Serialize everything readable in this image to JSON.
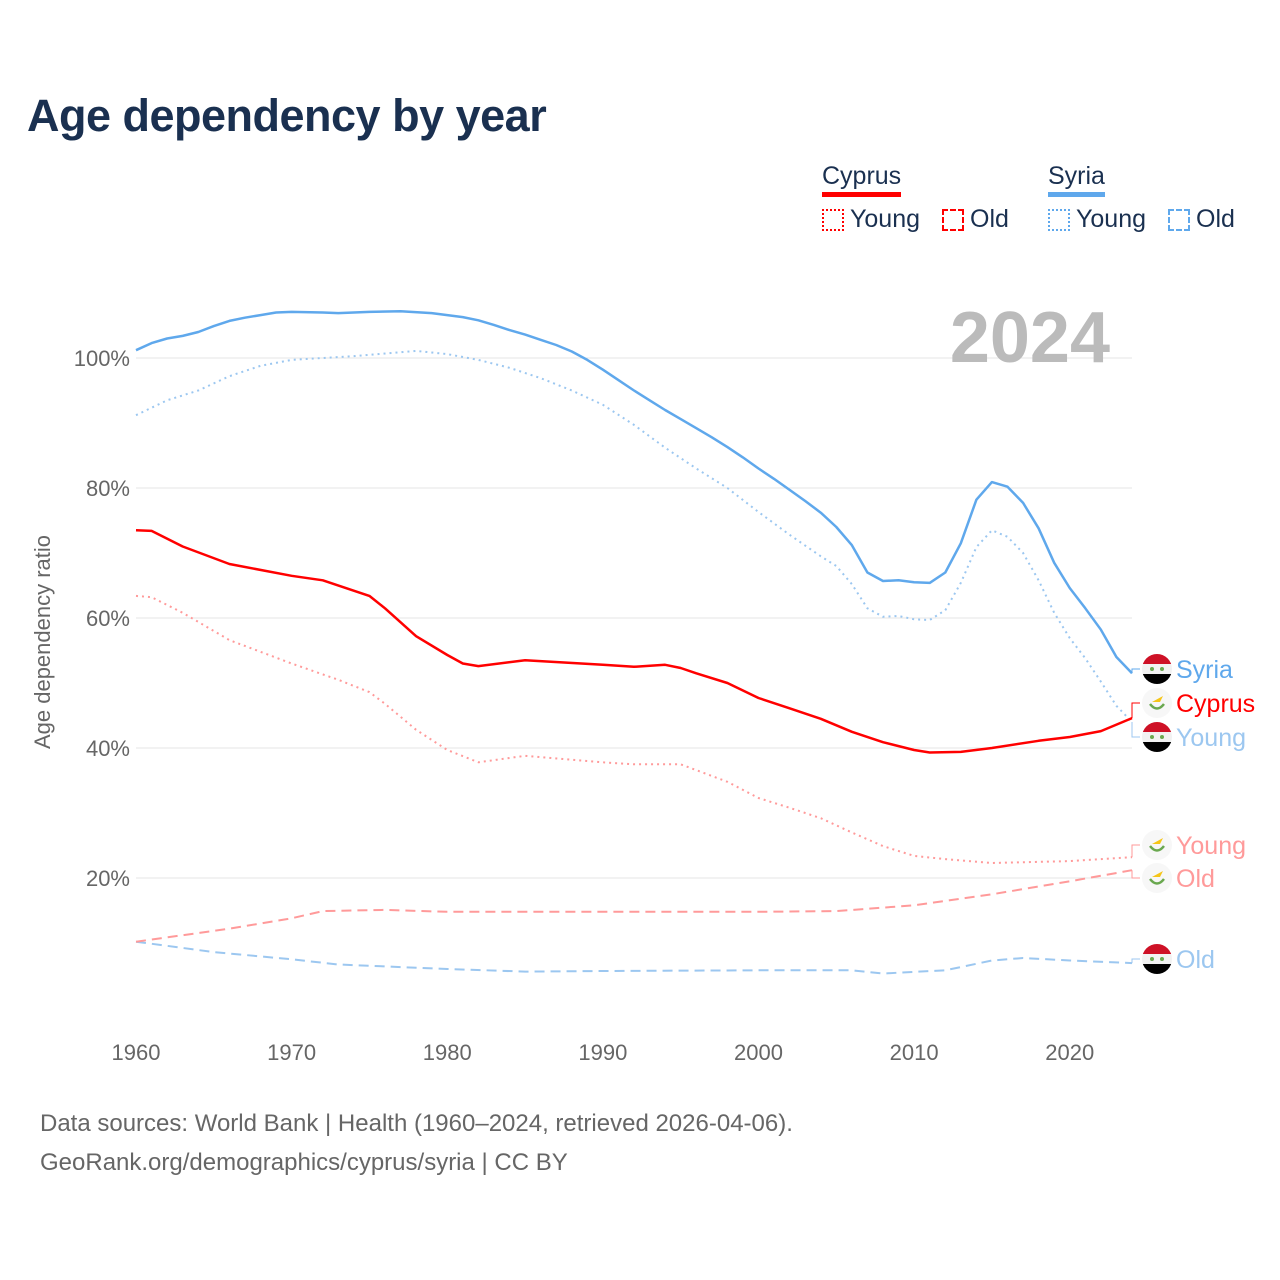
{
  "title": "Age dependency by year",
  "legend": {
    "countries": [
      {
        "name": "Cyprus",
        "color": "#ff0000",
        "items": [
          "Young",
          "Old"
        ]
      },
      {
        "name": "Syria",
        "color": "#5fa8ec",
        "items": [
          "Young",
          "Old"
        ]
      }
    ]
  },
  "year_label": "2024",
  "footer": {
    "line1": "Data sources: World Bank | Health (1960–2024, retrieved 2026-04-06).",
    "line2": "GeoRank.org/demographics/cyprus/syria | CC BY"
  },
  "chart_data": {
    "type": "line",
    "title": "Age dependency by year",
    "xlabel": "",
    "ylabel": "Age dependency ratio",
    "xlim": [
      1960,
      2024
    ],
    "ylim": [
      0,
      110
    ],
    "x_ticks": [
      "1960",
      "1970",
      "1980",
      "1990",
      "2000",
      "2010",
      "2020"
    ],
    "y_ticks": [
      "20%",
      "40%",
      "60%",
      "80%",
      "100%"
    ],
    "grid": true,
    "series": [
      {
        "name": "Syria",
        "label": "Syria",
        "color": "#5fa8ec",
        "style": "solid",
        "points": [
          [
            1960,
            101.2
          ],
          [
            1961,
            102.3
          ],
          [
            1962,
            103
          ],
          [
            1963,
            103.4
          ],
          [
            1964,
            104
          ],
          [
            1965,
            104.9
          ],
          [
            1966,
            105.7
          ],
          [
            1967,
            106.2
          ],
          [
            1968,
            106.6
          ],
          [
            1969,
            107
          ],
          [
            1970,
            107.1
          ],
          [
            1972,
            107
          ],
          [
            1973,
            106.9
          ],
          [
            1975,
            107.1
          ],
          [
            1977,
            107.2
          ],
          [
            1979,
            106.9
          ],
          [
            1980,
            106.6
          ],
          [
            1981,
            106.3
          ],
          [
            1982,
            105.8
          ],
          [
            1983,
            105.1
          ],
          [
            1984,
            104.3
          ],
          [
            1985,
            103.6
          ],
          [
            1986,
            102.8
          ],
          [
            1987,
            102
          ],
          [
            1988,
            101
          ],
          [
            1989,
            99.7
          ],
          [
            1990,
            98.2
          ],
          [
            1991,
            96.6
          ],
          [
            1992,
            95
          ],
          [
            1993,
            93.5
          ],
          [
            1994,
            92
          ],
          [
            1995,
            90.6
          ],
          [
            1996,
            89.2
          ],
          [
            1997,
            87.8
          ],
          [
            1998,
            86.3
          ],
          [
            1999,
            84.7
          ],
          [
            2000,
            83
          ],
          [
            2001,
            81.4
          ],
          [
            2002,
            79.7
          ],
          [
            2003,
            78
          ],
          [
            2004,
            76.2
          ],
          [
            2005,
            74
          ],
          [
            2006,
            71.2
          ],
          [
            2007,
            67
          ],
          [
            2008,
            65.7
          ],
          [
            2009,
            65.8
          ],
          [
            2010,
            65.5
          ],
          [
            2011,
            65.4
          ],
          [
            2012,
            67
          ],
          [
            2013,
            71.5
          ],
          [
            2014,
            78.2
          ],
          [
            2015,
            80.9
          ],
          [
            2016,
            80.2
          ],
          [
            2017,
            77.7
          ],
          [
            2018,
            73.8
          ],
          [
            2019,
            68.5
          ],
          [
            2020,
            64.6
          ],
          [
            2021,
            61.5
          ],
          [
            2022,
            58.2
          ],
          [
            2023,
            54
          ],
          [
            2024,
            51.5
          ]
        ]
      },
      {
        "name": "Syria Young",
        "label": "Young",
        "color": "#9cc7f0",
        "style": "dotted",
        "points": [
          [
            1960,
            91.2
          ],
          [
            1962,
            93.5
          ],
          [
            1964,
            95
          ],
          [
            1966,
            97.2
          ],
          [
            1968,
            98.8
          ],
          [
            1970,
            99.7
          ],
          [
            1974,
            100.3
          ],
          [
            1978,
            101.1
          ],
          [
            1980,
            100.6
          ],
          [
            1982,
            99.7
          ],
          [
            1984,
            98.5
          ],
          [
            1986,
            96.9
          ],
          [
            1988,
            95
          ],
          [
            1990,
            92.8
          ],
          [
            1992,
            89.7
          ],
          [
            1994,
            86.2
          ],
          [
            1996,
            83
          ],
          [
            1998,
            80
          ],
          [
            2000,
            76.3
          ],
          [
            2002,
            72.8
          ],
          [
            2004,
            69.5
          ],
          [
            2005,
            68
          ],
          [
            2006,
            65.2
          ],
          [
            2007,
            61.5
          ],
          [
            2008,
            60.2
          ],
          [
            2009,
            60.3
          ],
          [
            2010,
            59.8
          ],
          [
            2011,
            59.7
          ],
          [
            2012,
            61.2
          ],
          [
            2013,
            65.4
          ],
          [
            2014,
            70.9
          ],
          [
            2015,
            73.5
          ],
          [
            2016,
            72.5
          ],
          [
            2017,
            70
          ],
          [
            2018,
            65.8
          ],
          [
            2019,
            60.8
          ],
          [
            2020,
            56.9
          ],
          [
            2021,
            53.8
          ],
          [
            2022,
            50.2
          ],
          [
            2023,
            46.5
          ],
          [
            2024,
            44
          ]
        ]
      },
      {
        "name": "Syria Old",
        "label": "Old",
        "color": "#9cc7f0",
        "style": "dashed",
        "points": [
          [
            1960,
            10.2
          ],
          [
            1965,
            8.6
          ],
          [
            1970,
            7.5
          ],
          [
            1973,
            6.7
          ],
          [
            1980,
            6
          ],
          [
            1985,
            5.6
          ],
          [
            1990,
            5.7
          ],
          [
            2000,
            5.8
          ],
          [
            2006,
            5.8
          ],
          [
            2008,
            5.3
          ],
          [
            2012,
            5.8
          ],
          [
            2015,
            7.3
          ],
          [
            2017,
            7.7
          ],
          [
            2020,
            7.3
          ],
          [
            2024,
            6.9
          ]
        ]
      },
      {
        "name": "Cyprus",
        "label": "Cyprus",
        "color": "#ff0000",
        "style": "solid",
        "points": [
          [
            1960,
            73.5
          ],
          [
            1961,
            73.4
          ],
          [
            1963,
            71
          ],
          [
            1966,
            68.3
          ],
          [
            1970,
            66.5
          ],
          [
            1972,
            65.8
          ],
          [
            1975,
            63.4
          ],
          [
            1976,
            61.5
          ],
          [
            1978,
            57.2
          ],
          [
            1980,
            54.3
          ],
          [
            1981,
            53
          ],
          [
            1982,
            52.6
          ],
          [
            1985,
            53.5
          ],
          [
            1990,
            52.8
          ],
          [
            1992,
            52.5
          ],
          [
            1994,
            52.8
          ],
          [
            1995,
            52.3
          ],
          [
            1996,
            51.5
          ],
          [
            1998,
            50
          ],
          [
            2000,
            47.7
          ],
          [
            2002,
            46.1
          ],
          [
            2004,
            44.5
          ],
          [
            2006,
            42.5
          ],
          [
            2008,
            40.9
          ],
          [
            2010,
            39.7
          ],
          [
            2011,
            39.3
          ],
          [
            2013,
            39.4
          ],
          [
            2015,
            40
          ],
          [
            2018,
            41.1
          ],
          [
            2020,
            41.7
          ],
          [
            2022,
            42.6
          ],
          [
            2024,
            44.6
          ]
        ]
      },
      {
        "name": "Cyprus Young",
        "label": "Young",
        "color": "#ff9a9a",
        "style": "dotted",
        "points": [
          [
            1960,
            63.4
          ],
          [
            1961,
            63.2
          ],
          [
            1963,
            60.8
          ],
          [
            1966,
            56.6
          ],
          [
            1970,
            53
          ],
          [
            1973,
            50.5
          ],
          [
            1975,
            48.6
          ],
          [
            1976,
            46.8
          ],
          [
            1978,
            42.8
          ],
          [
            1980,
            39.7
          ],
          [
            1982,
            37.8
          ],
          [
            1985,
            38.8
          ],
          [
            1990,
            37.8
          ],
          [
            1992,
            37.5
          ],
          [
            1995,
            37.5
          ],
          [
            1998,
            34.8
          ],
          [
            2000,
            32.3
          ],
          [
            2002,
            30.8
          ],
          [
            2004,
            29.2
          ],
          [
            2006,
            27
          ],
          [
            2008,
            24.9
          ],
          [
            2010,
            23.4
          ],
          [
            2012,
            22.9
          ],
          [
            2015,
            22.3
          ],
          [
            2020,
            22.6
          ],
          [
            2024,
            23.2
          ]
        ]
      },
      {
        "name": "Cyprus Old",
        "label": "Old",
        "color": "#ff9a9a",
        "style": "dashed",
        "points": [
          [
            1960,
            10.2
          ],
          [
            1966,
            12.2
          ],
          [
            1970,
            13.8
          ],
          [
            1972,
            14.9
          ],
          [
            1976,
            15.1
          ],
          [
            1980,
            14.8
          ],
          [
            1990,
            14.8
          ],
          [
            2000,
            14.8
          ],
          [
            2005,
            14.9
          ],
          [
            2010,
            15.8
          ],
          [
            2015,
            17.5
          ],
          [
            2020,
            19.5
          ],
          [
            2024,
            21.2
          ]
        ]
      }
    ]
  }
}
